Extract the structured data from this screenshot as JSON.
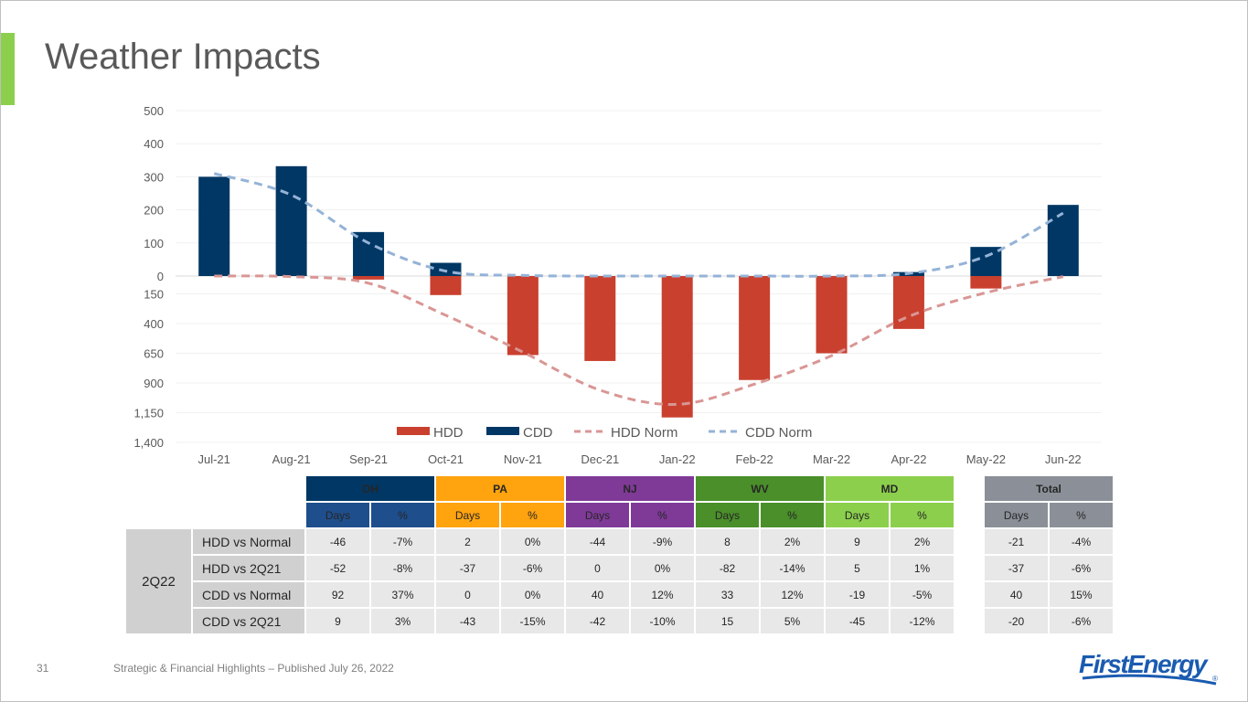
{
  "slide": {
    "title": "Weather Impacts",
    "page_number": "31",
    "footer": "Strategic & Financial Highlights – Published July 26, 2022",
    "logo_text": "FirstEnergy",
    "logo_mark": "®",
    "accent_color": "#8ccf4d"
  },
  "chart_data": {
    "type": "bar",
    "title": "",
    "categories": [
      "Jul-21",
      "Aug-21",
      "Sep-21",
      "Oct-21",
      "Nov-21",
      "Dec-21",
      "Jan-22",
      "Feb-22",
      "Mar-22",
      "Apr-22",
      "May-22",
      "Jun-22"
    ],
    "series": [
      {
        "name": "HDD",
        "kind": "bar",
        "axis": "lower",
        "color": "#c9402f",
        "values": [
          0,
          0,
          30,
          160,
          665,
          715,
          1190,
          875,
          650,
          445,
          105,
          0
        ]
      },
      {
        "name": "CDD",
        "kind": "bar",
        "axis": "upper",
        "color": "#003764",
        "values": [
          300,
          332,
          133,
          40,
          0,
          0,
          0,
          0,
          0,
          12,
          88,
          215
        ]
      },
      {
        "name": "HDD Norm",
        "kind": "dashed-line",
        "axis": "lower",
        "color": "#d99694",
        "values": [
          0,
          5,
          60,
          330,
          640,
          960,
          1080,
          910,
          670,
          340,
          140,
          5
        ]
      },
      {
        "name": "CDD Norm",
        "kind": "dashed-line",
        "axis": "upper",
        "color": "#95b3d7",
        "values": [
          310,
          245,
          100,
          15,
          2,
          0,
          0,
          0,
          0,
          8,
          60,
          190
        ]
      }
    ],
    "upper_axis": {
      "ticks": [
        "500",
        "400",
        "300",
        "200",
        "100",
        "0"
      ],
      "range": [
        0,
        500
      ]
    },
    "lower_axis": {
      "ticks": [
        "150",
        "400",
        "650",
        "900",
        "1,150",
        "1,400"
      ],
      "tick_values": [
        150,
        400,
        650,
        900,
        1150,
        1400
      ],
      "range": [
        0,
        1400
      ],
      "inverted": true
    },
    "legend": {
      "position": "bottom-center",
      "entries": [
        "HDD",
        "CDD",
        "HDD Norm",
        "CDD Norm"
      ]
    },
    "grid": true
  },
  "table": {
    "group_label": "2Q22",
    "sub_headers": {
      "days": "Days",
      "pct": "%"
    },
    "states": [
      {
        "name": "OH",
        "color": "#003764",
        "sub_color": "#1f4e8c"
      },
      {
        "name": "PA",
        "color": "#ffa30f",
        "sub_color": "#ffa30f"
      },
      {
        "name": "NJ",
        "color": "#7f3a98",
        "sub_color": "#7f3a98"
      },
      {
        "name": "WV",
        "color": "#4a8f2a",
        "sub_color": "#4a8f2a"
      },
      {
        "name": "MD",
        "color": "#8ccf4d",
        "sub_color": "#8ccf4d"
      }
    ],
    "total": {
      "name": "Total",
      "color": "#8b9098"
    },
    "rows": [
      {
        "label": "HDD vs Normal",
        "values": [
          "-46",
          "-7%",
          "2",
          "0%",
          "-44",
          "-9%",
          "8",
          "2%",
          "9",
          "2%"
        ],
        "total": [
          "-21",
          "-4%"
        ]
      },
      {
        "label": "HDD vs 2Q21",
        "values": [
          "-52",
          "-8%",
          "-37",
          "-6%",
          "0",
          "0%",
          "-82",
          "-14%",
          "5",
          "1%"
        ],
        "total": [
          "-37",
          "-6%"
        ]
      },
      {
        "label": "CDD vs Normal",
        "values": [
          "92",
          "37%",
          "0",
          "0%",
          "40",
          "12%",
          "33",
          "12%",
          "-19",
          "-5%"
        ],
        "total": [
          "40",
          "15%"
        ]
      },
      {
        "label": "CDD vs 2Q21",
        "values": [
          "9",
          "3%",
          "-43",
          "-15%",
          "-42",
          "-10%",
          "15",
          "5%",
          "-45",
          "-12%"
        ],
        "total": [
          "-20",
          "-6%"
        ]
      }
    ]
  }
}
